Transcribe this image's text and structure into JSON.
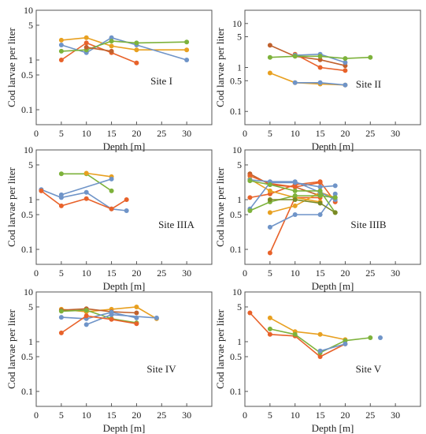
{
  "chart_data": [
    {
      "type": "line",
      "site_label": "Site I",
      "xlabel": "Depth  [m]",
      "ylabel": "Cod larvae per liter",
      "xlim": [
        0,
        35
      ],
      "ylim": [
        0.05,
        10
      ],
      "y_scale": "log",
      "xticks": [
        0,
        5,
        10,
        15,
        20,
        25,
        30
      ],
      "yticks": [
        0.1,
        0.5,
        1,
        5,
        10
      ],
      "ytick_labels": [
        "0.1",
        "0.5",
        "1",
        "5",
        "10"
      ],
      "series": [
        {
          "color": "#e8622a",
          "points": [
            [
              5,
              1.0
            ],
            [
              10,
              2.2
            ],
            [
              15,
              1.4
            ],
            [
              20,
              0.87
            ]
          ]
        },
        {
          "color": "#e8a020",
          "points": [
            [
              5,
              2.5
            ],
            [
              10,
              2.8
            ],
            [
              15,
              1.9
            ],
            [
              20,
              1.6
            ],
            [
              30,
              1.6
            ]
          ]
        },
        {
          "color": "#6f94c8",
          "points": [
            [
              5,
              2.0
            ],
            [
              10,
              1.4
            ],
            [
              15,
              2.8
            ],
            [
              20,
              2.0
            ],
            [
              30,
              1.0
            ]
          ]
        },
        {
          "color": "#7db23b",
          "points": [
            [
              5,
              1.5
            ],
            [
              10,
              1.6
            ],
            [
              15,
              2.4
            ],
            [
              20,
              2.2
            ],
            [
              30,
              2.3
            ]
          ]
        },
        {
          "color": "#c0612d",
          "points": [
            [
              10,
              1.8
            ],
            [
              15,
              1.5
            ]
          ]
        }
      ]
    },
    {
      "type": "line",
      "site_label": "Site II",
      "xlabel": "Depth  [m]",
      "ylabel": "Cod larvae per liter",
      "xlim": [
        0,
        35
      ],
      "ylim": [
        0.05,
        20
      ],
      "y_scale": "log",
      "xticks": [
        0,
        5,
        10,
        15,
        20,
        25,
        30
      ],
      "yticks": [
        0.1,
        0.5,
        1,
        5,
        10
      ],
      "ytick_labels": [
        "0.1",
        "0.5",
        "1",
        "5",
        "10"
      ],
      "series": [
        {
          "color": "#c0612d",
          "points": [
            [
              5,
              3.2
            ],
            [
              10,
              1.8
            ],
            [
              15,
              1.5
            ],
            [
              20,
              1.1
            ]
          ]
        },
        {
          "color": "#e8622a",
          "points": [
            [
              10,
              2.0
            ],
            [
              15,
              1.0
            ],
            [
              20,
              0.85
            ]
          ]
        },
        {
          "color": "#e8a020",
          "points": [
            [
              5,
              0.75
            ],
            [
              10,
              0.45
            ],
            [
              15,
              0.42
            ],
            [
              20,
              0.4
            ]
          ]
        },
        {
          "color": "#6f94c8",
          "points": [
            [
              10,
              1.9
            ],
            [
              15,
              2.0
            ],
            [
              20,
              1.3
            ]
          ]
        },
        {
          "color": "#7db23b",
          "points": [
            [
              5,
              1.7
            ],
            [
              10,
              1.8
            ],
            [
              15,
              1.8
            ],
            [
              20,
              1.6
            ],
            [
              25,
              1.7
            ]
          ]
        },
        {
          "color": "#6f94c8",
          "points": [
            [
              10,
              0.45
            ],
            [
              15,
              0.45
            ],
            [
              20,
              0.4
            ]
          ]
        }
      ]
    },
    {
      "type": "line",
      "site_label": "Site IIIA",
      "xlabel": "Depth  [m]",
      "ylabel": "Cod larvae per liter",
      "xlim": [
        0,
        35
      ],
      "ylim": [
        0.05,
        10
      ],
      "y_scale": "log",
      "xticks": [
        0,
        5,
        10,
        15,
        20,
        25,
        30
      ],
      "yticks": [
        0.1,
        0.5,
        1,
        5,
        10
      ],
      "ytick_labels": [
        "0.1",
        "0.5",
        "1",
        "5",
        "10"
      ],
      "series": [
        {
          "color": "#7db23b",
          "points": [
            [
              5,
              3.3
            ],
            [
              10,
              3.3
            ],
            [
              15,
              1.5
            ]
          ]
        },
        {
          "color": "#e8a020",
          "points": [
            [
              10,
              3.4
            ],
            [
              15,
              2.9
            ]
          ]
        },
        {
          "color": "#6f94c8",
          "points": [
            [
              1,
              1.6
            ],
            [
              5,
              1.1
            ],
            [
              10,
              1.4
            ],
            [
              15,
              0.65
            ],
            [
              18,
              0.6
            ]
          ]
        },
        {
          "color": "#e8622a",
          "points": [
            [
              1,
              1.5
            ],
            [
              5,
              0.75
            ],
            [
              10,
              1.05
            ],
            [
              15,
              0.65
            ],
            [
              18,
              1.0
            ]
          ]
        },
        {
          "color": "#6f94c8",
          "points": [
            [
              5,
              1.25
            ],
            [
              15,
              2.6
            ]
          ]
        }
      ]
    },
    {
      "type": "line",
      "site_label": "Site IIIB",
      "xlabel": "Depth  [m]",
      "ylabel": "Cod larvae per liter",
      "xlim": [
        0,
        35
      ],
      "ylim": [
        0.05,
        10
      ],
      "y_scale": "log",
      "xticks": [
        0,
        5,
        10,
        15,
        20,
        25,
        30
      ],
      "yticks": [
        0.1,
        0.5,
        1,
        5,
        10
      ],
      "ytick_labels": [
        "0.1",
        "0.5",
        "1",
        "5",
        "10"
      ],
      "series": [
        {
          "color": "#c0612d",
          "points": [
            [
              1,
              3.3
            ],
            [
              5,
              2.0
            ],
            [
              10,
              1.8
            ],
            [
              15,
              1.2
            ]
          ]
        },
        {
          "color": "#e8622a",
          "points": [
            [
              1,
              3.0
            ],
            [
              5,
              2.1
            ],
            [
              10,
              1.8
            ],
            [
              15,
              2.2
            ]
          ]
        },
        {
          "color": "#e8622a",
          "points": [
            [
              1,
              1.1
            ],
            [
              5,
              1.3
            ],
            [
              10,
              2.0
            ],
            [
              15,
              2.3
            ],
            [
              18,
              0.9
            ]
          ]
        },
        {
          "color": "#e8622a",
          "points": [
            [
              5,
              0.085
            ],
            [
              10,
              1.1
            ],
            [
              15,
              1.1
            ]
          ]
        },
        {
          "color": "#e8a020",
          "points": [
            [
              1,
              2.6
            ],
            [
              5,
              1.5
            ],
            [
              10,
              1.1
            ],
            [
              15,
              0.9
            ]
          ]
        },
        {
          "color": "#e8a020",
          "points": [
            [
              5,
              0.55
            ],
            [
              10,
              0.75
            ],
            [
              15,
              1.4
            ],
            [
              18,
              1.1
            ]
          ]
        },
        {
          "color": "#6f94c8",
          "points": [
            [
              1,
              2.5
            ],
            [
              5,
              2.3
            ],
            [
              10,
              2.3
            ],
            [
              15,
              1.4
            ],
            [
              18,
              1.0
            ]
          ]
        },
        {
          "color": "#6f94c8",
          "points": [
            [
              5,
              0.28
            ],
            [
              10,
              0.5
            ],
            [
              15,
              0.5
            ],
            [
              18,
              1.3
            ]
          ]
        },
        {
          "color": "#6f94c8",
          "points": [
            [
              1,
              0.65
            ],
            [
              5,
              2.2
            ],
            [
              10,
              2.2
            ],
            [
              15,
              1.8
            ],
            [
              18,
              1.9
            ]
          ]
        },
        {
          "color": "#7db23b",
          "points": [
            [
              1,
              2.4
            ],
            [
              5,
              2.0
            ],
            [
              10,
              1.5
            ],
            [
              15,
              1.5
            ],
            [
              18,
              0.55
            ]
          ]
        },
        {
          "color": "#7db23b",
          "points": [
            [
              1,
              0.6
            ],
            [
              5,
              0.9
            ],
            [
              10,
              1.2
            ],
            [
              15,
              1.2
            ],
            [
              18,
              1.1
            ]
          ]
        },
        {
          "color": "#7a8a24",
          "points": [
            [
              5,
              1.0
            ],
            [
              10,
              1.0
            ],
            [
              15,
              0.85
            ],
            [
              18,
              0.55
            ]
          ]
        }
      ]
    },
    {
      "type": "line",
      "site_label": "Site IV",
      "xlabel": "Depth  [m]",
      "ylabel": "Cod larvae per liter",
      "xlim": [
        0,
        35
      ],
      "ylim": [
        0.05,
        10
      ],
      "y_scale": "log",
      "xticks": [
        0,
        5,
        10,
        15,
        20,
        25,
        30
      ],
      "yticks": [
        0.1,
        0.5,
        1,
        5,
        10
      ],
      "ytick_labels": [
        "0.1",
        "0.5",
        "1",
        "5",
        "10"
      ],
      "series": [
        {
          "color": "#e8a020",
          "points": [
            [
              5,
              4.5
            ],
            [
              10,
              4.0
            ],
            [
              15,
              4.5
            ],
            [
              20,
              5.0
            ],
            [
              24,
              2.9
            ]
          ]
        },
        {
          "color": "#c0612d",
          "points": [
            [
              5,
              4.3
            ],
            [
              10,
              4.6
            ],
            [
              15,
              4.0
            ],
            [
              20,
              3.8
            ]
          ]
        },
        {
          "color": "#7db23b",
          "points": [
            [
              5,
              4.1
            ],
            [
              10,
              4.3
            ],
            [
              15,
              2.9
            ],
            [
              20,
              2.4
            ]
          ]
        },
        {
          "color": "#6f94c8",
          "points": [
            [
              5,
              3.1
            ],
            [
              10,
              2.9
            ],
            [
              15,
              3.9
            ],
            [
              20,
              3.0
            ]
          ]
        },
        {
          "color": "#6f94c8",
          "points": [
            [
              10,
              2.2
            ],
            [
              15,
              3.5
            ],
            [
              24,
              3.0
            ]
          ]
        },
        {
          "color": "#e8622a",
          "points": [
            [
              5,
              1.5
            ],
            [
              10,
              3.3
            ],
            [
              15,
              2.8
            ],
            [
              20,
              2.3
            ]
          ]
        }
      ]
    },
    {
      "type": "line",
      "site_label": "Site V",
      "xlabel": "Depth  [m]",
      "ylabel": "Cod larvae per liter",
      "xlim": [
        0,
        35
      ],
      "ylim": [
        0.05,
        10
      ],
      "y_scale": "log",
      "xticks": [
        0,
        5,
        10,
        15,
        20,
        25,
        30
      ],
      "yticks": [
        0.1,
        0.5,
        1,
        5,
        10
      ],
      "ytick_labels": [
        "0.1",
        "0.5",
        "1",
        "5",
        "10"
      ],
      "series": [
        {
          "color": "#e8622a",
          "points": [
            [
              1,
              3.8
            ],
            [
              5,
              1.4
            ],
            [
              10,
              1.3
            ],
            [
              15,
              0.5
            ],
            [
              20,
              0.9
            ]
          ]
        },
        {
          "color": "#e8a020",
          "points": [
            [
              5,
              3.0
            ],
            [
              10,
              1.6
            ],
            [
              15,
              1.4
            ],
            [
              20,
              1.1
            ]
          ]
        },
        {
          "color": "#7db23b",
          "points": [
            [
              5,
              1.8
            ],
            [
              10,
              1.4
            ],
            [
              15,
              0.6
            ],
            [
              20,
              1.05
            ],
            [
              25,
              1.2
            ]
          ]
        },
        {
          "color": "#6f94c8",
          "points": [
            [
              15,
              0.65
            ],
            [
              20,
              0.9
            ]
          ]
        },
        {
          "color": "#6f94c8",
          "points": [
            [
              27,
              1.2
            ]
          ]
        }
      ]
    }
  ]
}
